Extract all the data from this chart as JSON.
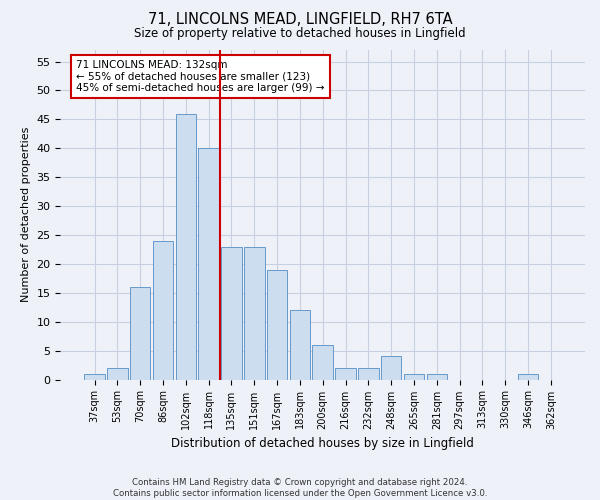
{
  "title": "71, LINCOLNS MEAD, LINGFIELD, RH7 6TA",
  "subtitle": "Size of property relative to detached houses in Lingfield",
  "xlabel": "Distribution of detached houses by size in Lingfield",
  "ylabel": "Number of detached properties",
  "bar_labels": [
    "37sqm",
    "53sqm",
    "70sqm",
    "86sqm",
    "102sqm",
    "118sqm",
    "135sqm",
    "151sqm",
    "167sqm",
    "183sqm",
    "200sqm",
    "216sqm",
    "232sqm",
    "248sqm",
    "265sqm",
    "281sqm",
    "297sqm",
    "313sqm",
    "330sqm",
    "346sqm",
    "362sqm"
  ],
  "bar_values": [
    1,
    2,
    16,
    24,
    46,
    40,
    23,
    23,
    19,
    12,
    6,
    2,
    2,
    4,
    1,
    1,
    0,
    0,
    0,
    1,
    0
  ],
  "bar_color": "#cdddf0",
  "bar_edge_color": "#6699cc",
  "vline_index": 6,
  "vline_color": "#cc0000",
  "annotation_text": "71 LINCOLNS MEAD: 132sqm\n← 55% of detached houses are smaller (123)\n45% of semi-detached houses are larger (99) →",
  "annotation_box_facecolor": "#ffffff",
  "annotation_box_edgecolor": "#cc0000",
  "ylim": [
    0,
    57
  ],
  "yticks": [
    0,
    5,
    10,
    15,
    20,
    25,
    30,
    35,
    40,
    45,
    50,
    55
  ],
  "footer_line1": "Contains HM Land Registry data © Crown copyright and database right 2024.",
  "footer_line2": "Contains public sector information licensed under the Open Government Licence v3.0.",
  "bg_color": "#eef2f8",
  "plot_bg_color": "#eef2f8",
  "grid_color": "#c8cfe0"
}
